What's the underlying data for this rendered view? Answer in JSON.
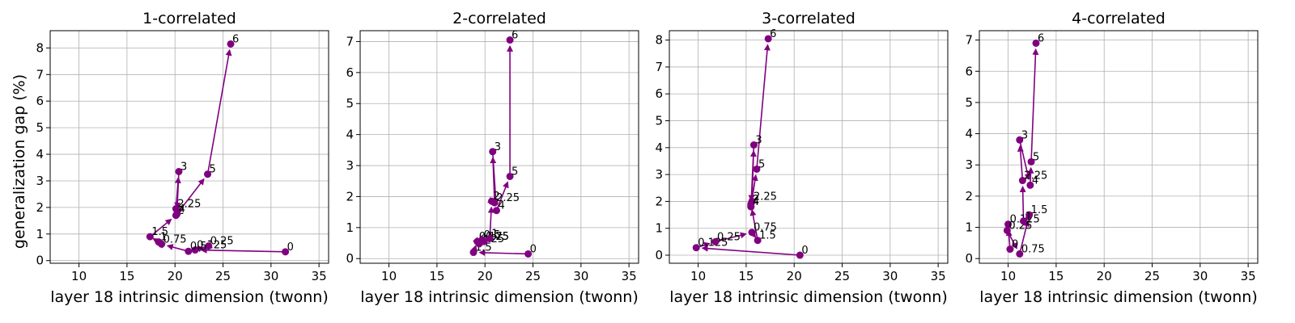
{
  "figure": {
    "ylabel": "generalization gap (%)",
    "xlabel": "layer 18 intrinsic dimension (twonn)"
  },
  "chart_data": [
    {
      "type": "line",
      "title": "1-correlated",
      "xlabel": "layer 18 intrinsic dimension (twonn)",
      "ylabel": "generalization gap (%)",
      "xlim": [
        7,
        36
      ],
      "ylim": [
        -0.1,
        8.65
      ],
      "xticks": [
        10,
        15,
        20,
        25,
        30,
        35
      ],
      "yticks": [
        0,
        1,
        2,
        3,
        4,
        5,
        6,
        7,
        8
      ],
      "grid": true,
      "color": "#800080",
      "series": [
        {
          "labels": [
            "0",
            "0.125",
            "0.25",
            "0.5",
            "0.75",
            "1",
            "1.5",
            "2",
            "2.25",
            "3",
            "4",
            "5",
            "6"
          ],
          "x": [
            31.5,
            22.1,
            23.5,
            21.4,
            18.6,
            18.3,
            17.4,
            20.1,
            20.1,
            20.4,
            20.2,
            23.4,
            25.8
          ],
          "y": [
            0.33,
            0.4,
            0.55,
            0.35,
            0.62,
            0.7,
            0.9,
            1.7,
            1.95,
            3.35,
            1.75,
            3.25,
            8.15
          ]
        }
      ]
    },
    {
      "type": "line",
      "title": "2-correlated",
      "xlabel": "layer 18 intrinsic dimension (twonn)",
      "ylabel": "",
      "xlim": [
        7,
        36
      ],
      "ylim": [
        -0.15,
        7.35
      ],
      "xticks": [
        10,
        15,
        20,
        25,
        30,
        35
      ],
      "yticks": [
        0,
        1,
        2,
        3,
        4,
        5,
        6,
        7
      ],
      "grid": true,
      "color": "#800080",
      "series": [
        {
          "labels": [
            "0",
            "1.5",
            "0.125",
            "0.25",
            "0.5",
            "0.75",
            "1",
            "2",
            "2.25",
            "3",
            "4",
            "5",
            "6"
          ],
          "x": [
            24.5,
            18.8,
            19.2,
            19.4,
            19.7,
            19.9,
            20.5,
            20.7,
            21.0,
            20.8,
            21.2,
            22.6,
            22.6
          ],
          "y": [
            0.15,
            0.2,
            0.55,
            0.48,
            0.6,
            0.55,
            0.65,
            1.85,
            1.8,
            3.45,
            1.55,
            2.65,
            7.05
          ]
        }
      ]
    },
    {
      "type": "line",
      "title": "3-correlated",
      "xlabel": "layer 18 intrinsic dimension (twonn)",
      "ylabel": "",
      "xlim": [
        7,
        36
      ],
      "ylim": [
        -0.3,
        8.35
      ],
      "xticks": [
        10,
        15,
        20,
        25,
        30,
        35
      ],
      "yticks": [
        0,
        1,
        2,
        3,
        4,
        5,
        6,
        7,
        8
      ],
      "grid": true,
      "color": "#800080",
      "series": [
        {
          "labels": [
            "0",
            "0.125",
            "0.25",
            "0.75",
            "1.5",
            "2",
            "2.25",
            "3",
            "4",
            "5",
            "6"
          ],
          "x": [
            20.6,
            9.8,
            11.8,
            15.6,
            16.2,
            15.5,
            15.6,
            15.8,
            15.5,
            16.1,
            17.3
          ],
          "y": [
            0.0,
            0.28,
            0.5,
            0.85,
            0.55,
            1.9,
            2.0,
            4.1,
            1.8,
            3.2,
            8.05
          ]
        }
      ]
    },
    {
      "type": "line",
      "title": "4-correlated",
      "xlabel": "layer 18 intrinsic dimension (twonn)",
      "ylabel": "",
      "xlim": [
        7,
        36
      ],
      "ylim": [
        -0.15,
        7.3
      ],
      "xticks": [
        10,
        15,
        20,
        25,
        30,
        35
      ],
      "yticks": [
        0,
        1,
        2,
        3,
        4,
        5,
        6,
        7
      ],
      "grid": true,
      "color": "#800080",
      "series": [
        {
          "labels": [
            "0",
            "0.125",
            "0.25",
            "0.75",
            "1.5",
            "1",
            "2.25",
            "3",
            "4",
            "5",
            "6"
          ],
          "x": [
            10.2,
            10.0,
            9.9,
            11.2,
            12.2,
            11.6,
            11.5,
            11.2,
            12.3,
            12.4,
            12.9
          ],
          "y": [
            0.3,
            1.1,
            0.9,
            0.15,
            1.4,
            1.2,
            2.5,
            3.8,
            2.35,
            3.1,
            6.9
          ]
        }
      ]
    }
  ]
}
